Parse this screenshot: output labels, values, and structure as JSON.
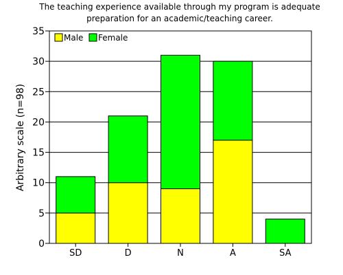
{
  "chart_data": {
    "type": "bar",
    "stacked": true,
    "title": [
      "The teaching experience available through my program is adequate",
      "preparation for an academic/teaching career."
    ],
    "xlabel": "",
    "ylabel": "Arbitrary scale (n=98)",
    "categories": [
      "SD",
      "D",
      "N",
      "A",
      "SA"
    ],
    "series": [
      {
        "name": "Male",
        "values": [
          5,
          10,
          9,
          17,
          0
        ]
      },
      {
        "name": "Female",
        "values": [
          6,
          11,
          22,
          13,
          4
        ]
      }
    ],
    "ylim": [
      0,
      35
    ],
    "yticks": [
      "0",
      "5",
      "10",
      "15",
      "20",
      "25",
      "30",
      "35"
    ],
    "grid": "horizontal",
    "legend": "top-left"
  },
  "colors": {
    "Male": "#ffff00",
    "Female": "#00ff00",
    "grid": "#000000",
    "outline": "#000000"
  }
}
